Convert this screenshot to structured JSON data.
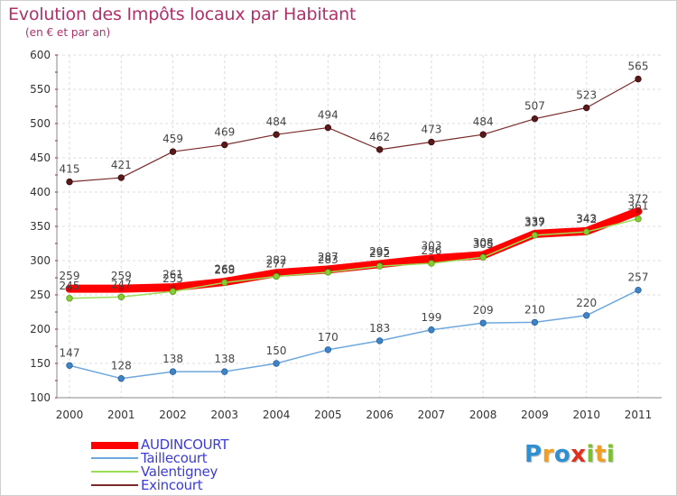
{
  "title": "Evolution des Impôts locaux par Habitant",
  "subtitle": "(en € et par an)",
  "logo": {
    "letters": [
      {
        "ch": "P",
        "color": "#2f8fd0"
      },
      {
        "ch": "r",
        "color": "#f0a020"
      },
      {
        "ch": "o",
        "color": "#2f8fd0"
      },
      {
        "ch": "x",
        "color": "#e03020"
      },
      {
        "ch": "i",
        "color": "#7cc030"
      },
      {
        "ch": "t",
        "color": "#f0a020"
      },
      {
        "ch": "i",
        "color": "#7cc030"
      }
    ]
  },
  "chart_data": {
    "type": "line",
    "title": "Evolution des Impôts locaux par Habitant",
    "subtitle": "(en € et par an)",
    "xlabel": "",
    "ylabel": "",
    "categories": [
      "2000",
      "2001",
      "2002",
      "2003",
      "2004",
      "2005",
      "2006",
      "2007",
      "2008",
      "2009",
      "2010",
      "2011"
    ],
    "ylim": [
      100,
      600
    ],
    "yticks": [
      100,
      150,
      200,
      250,
      300,
      350,
      400,
      450,
      500,
      550,
      600
    ],
    "grid": true,
    "legend_position": "bottom-left",
    "series": [
      {
        "name": "AUDINCOURT",
        "color": "#ff0000",
        "values": [
          259,
          259,
          261,
          269,
          282,
          287,
          295,
          303,
          308,
          339,
          343,
          372
        ]
      },
      {
        "name": "Taillecourt",
        "color": "#6fa8dc",
        "values": [
          147,
          128,
          138,
          138,
          150,
          170,
          183,
          199,
          209,
          210,
          220,
          257
        ]
      },
      {
        "name": "Valentigney",
        "color": "#99dd55",
        "values": [
          245,
          247,
          255,
          268,
          277,
          283,
          292,
          296,
          305,
          337,
          342,
          361
        ]
      },
      {
        "name": "Exincourt",
        "color": "#7a2a2a",
        "values": [
          415,
          421,
          459,
          469,
          484,
          494,
          462,
          473,
          484,
          507,
          523,
          565
        ]
      }
    ]
  }
}
